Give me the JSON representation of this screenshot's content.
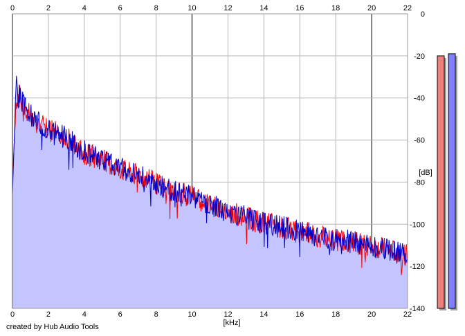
{
  "chart_data": {
    "type": "area",
    "xlabel": "[kHz]",
    "ylabel": "[dB]",
    "xlim": [
      0,
      22
    ],
    "ylim": [
      -140,
      0
    ],
    "xticks": [
      "0",
      "2",
      "4",
      "6",
      "8",
      "10",
      "12",
      "14",
      "16",
      "18",
      "20",
      "22"
    ],
    "yticks": [
      "0",
      "-20",
      "-40",
      "-60",
      "-80",
      "-100",
      "-120",
      "-140"
    ],
    "grid": true,
    "series": [
      {
        "color": "#ff0000",
        "x": [
          0.0,
          0.2,
          0.4,
          0.6,
          0.8,
          1.0,
          1.5,
          2.0,
          2.5,
          3.0,
          3.5,
          4.0,
          4.5,
          5.0,
          5.5,
          6.0,
          6.5,
          7.0,
          7.5,
          8.0,
          8.5,
          9.0,
          9.5,
          10.0,
          10.5,
          11.0,
          11.5,
          12.0,
          12.5,
          13.0,
          13.5,
          14.0,
          14.5,
          15.0,
          15.5,
          16.0,
          16.5,
          17.0,
          17.5,
          18.0,
          18.5,
          19.0,
          19.5,
          20.0,
          20.5,
          21.0,
          21.5,
          22.0
        ],
        "values": [
          -80,
          -42,
          -38,
          -46,
          -45,
          -48,
          -52,
          -55,
          -56,
          -58,
          -62,
          -66,
          -67,
          -69,
          -71,
          -73,
          -75,
          -76,
          -78,
          -80,
          -82,
          -84,
          -85,
          -86,
          -88,
          -90,
          -92,
          -94,
          -95,
          -96,
          -98,
          -99,
          -100,
          -101,
          -102,
          -103,
          -104,
          -105,
          -106,
          -107,
          -107,
          -108,
          -109,
          -110,
          -111,
          -112,
          -113,
          -114
        ]
      },
      {
        "color": "#0000cc",
        "x": [
          0.0,
          0.2,
          0.4,
          0.6,
          0.8,
          1.0,
          1.5,
          2.0,
          2.5,
          3.0,
          3.5,
          4.0,
          4.5,
          5.0,
          5.5,
          6.0,
          6.5,
          7.0,
          7.5,
          8.0,
          8.5,
          9.0,
          9.5,
          10.0,
          10.5,
          11.0,
          11.5,
          12.0,
          12.5,
          13.0,
          13.5,
          14.0,
          14.5,
          15.0,
          15.5,
          16.0,
          16.5,
          17.0,
          17.5,
          18.0,
          18.5,
          19.0,
          19.5,
          20.0,
          20.5,
          21.0,
          21.5,
          22.0
        ],
        "values": [
          -86,
          -34,
          -38,
          -42,
          -46,
          -47,
          -52,
          -54,
          -55,
          -58,
          -62,
          -65,
          -67,
          -69,
          -71,
          -73,
          -75,
          -76,
          -78,
          -80,
          -82,
          -84,
          -85,
          -86,
          -88,
          -90,
          -92,
          -94,
          -95,
          -96,
          -98,
          -99,
          -100,
          -101,
          -102,
          -103,
          -104,
          -105,
          -106,
          -107,
          -107,
          -108,
          -109,
          -110,
          -111,
          -112,
          -113,
          -114
        ]
      }
    ],
    "levels": [
      {
        "channel": "left",
        "color": "#f08080",
        "db": -20
      },
      {
        "channel": "right",
        "color": "#8080ff",
        "db": -19
      }
    ]
  },
  "footer": {
    "credit": "created by Hub Audio Tools"
  }
}
